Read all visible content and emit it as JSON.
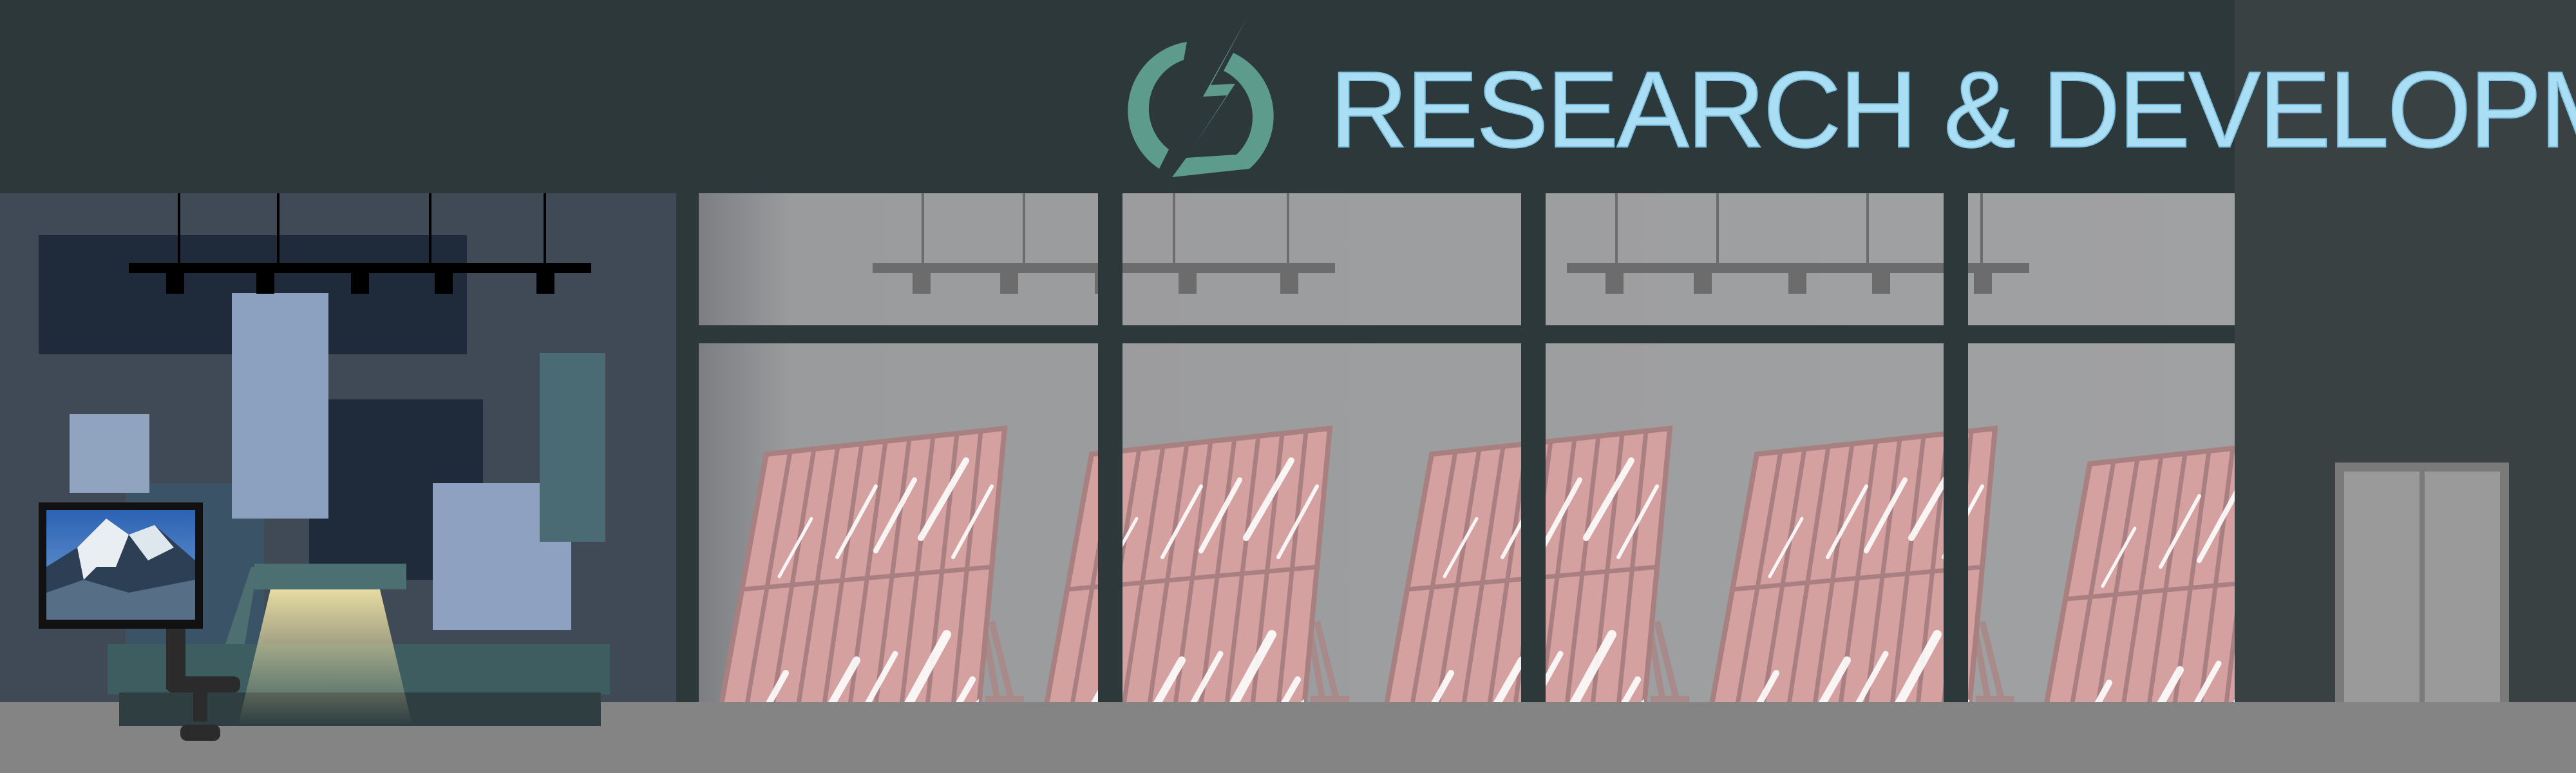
{
  "sign": {
    "text": "RESEARCH & DEVELOPMENT",
    "logo_icon": "lightning-bolt-icon",
    "text_color": "#a9def5",
    "logo_color": "#5d9b8c"
  },
  "colors": {
    "facade": "#2d383b",
    "side_building": "#3a4143",
    "ground": "#848484",
    "window_glass": "#9a9b9d",
    "panel_pink": "#d4a0a0",
    "office_wall": "#404a57"
  },
  "scene": {
    "solar_panel_count": 5,
    "window_pane_count": 4
  }
}
